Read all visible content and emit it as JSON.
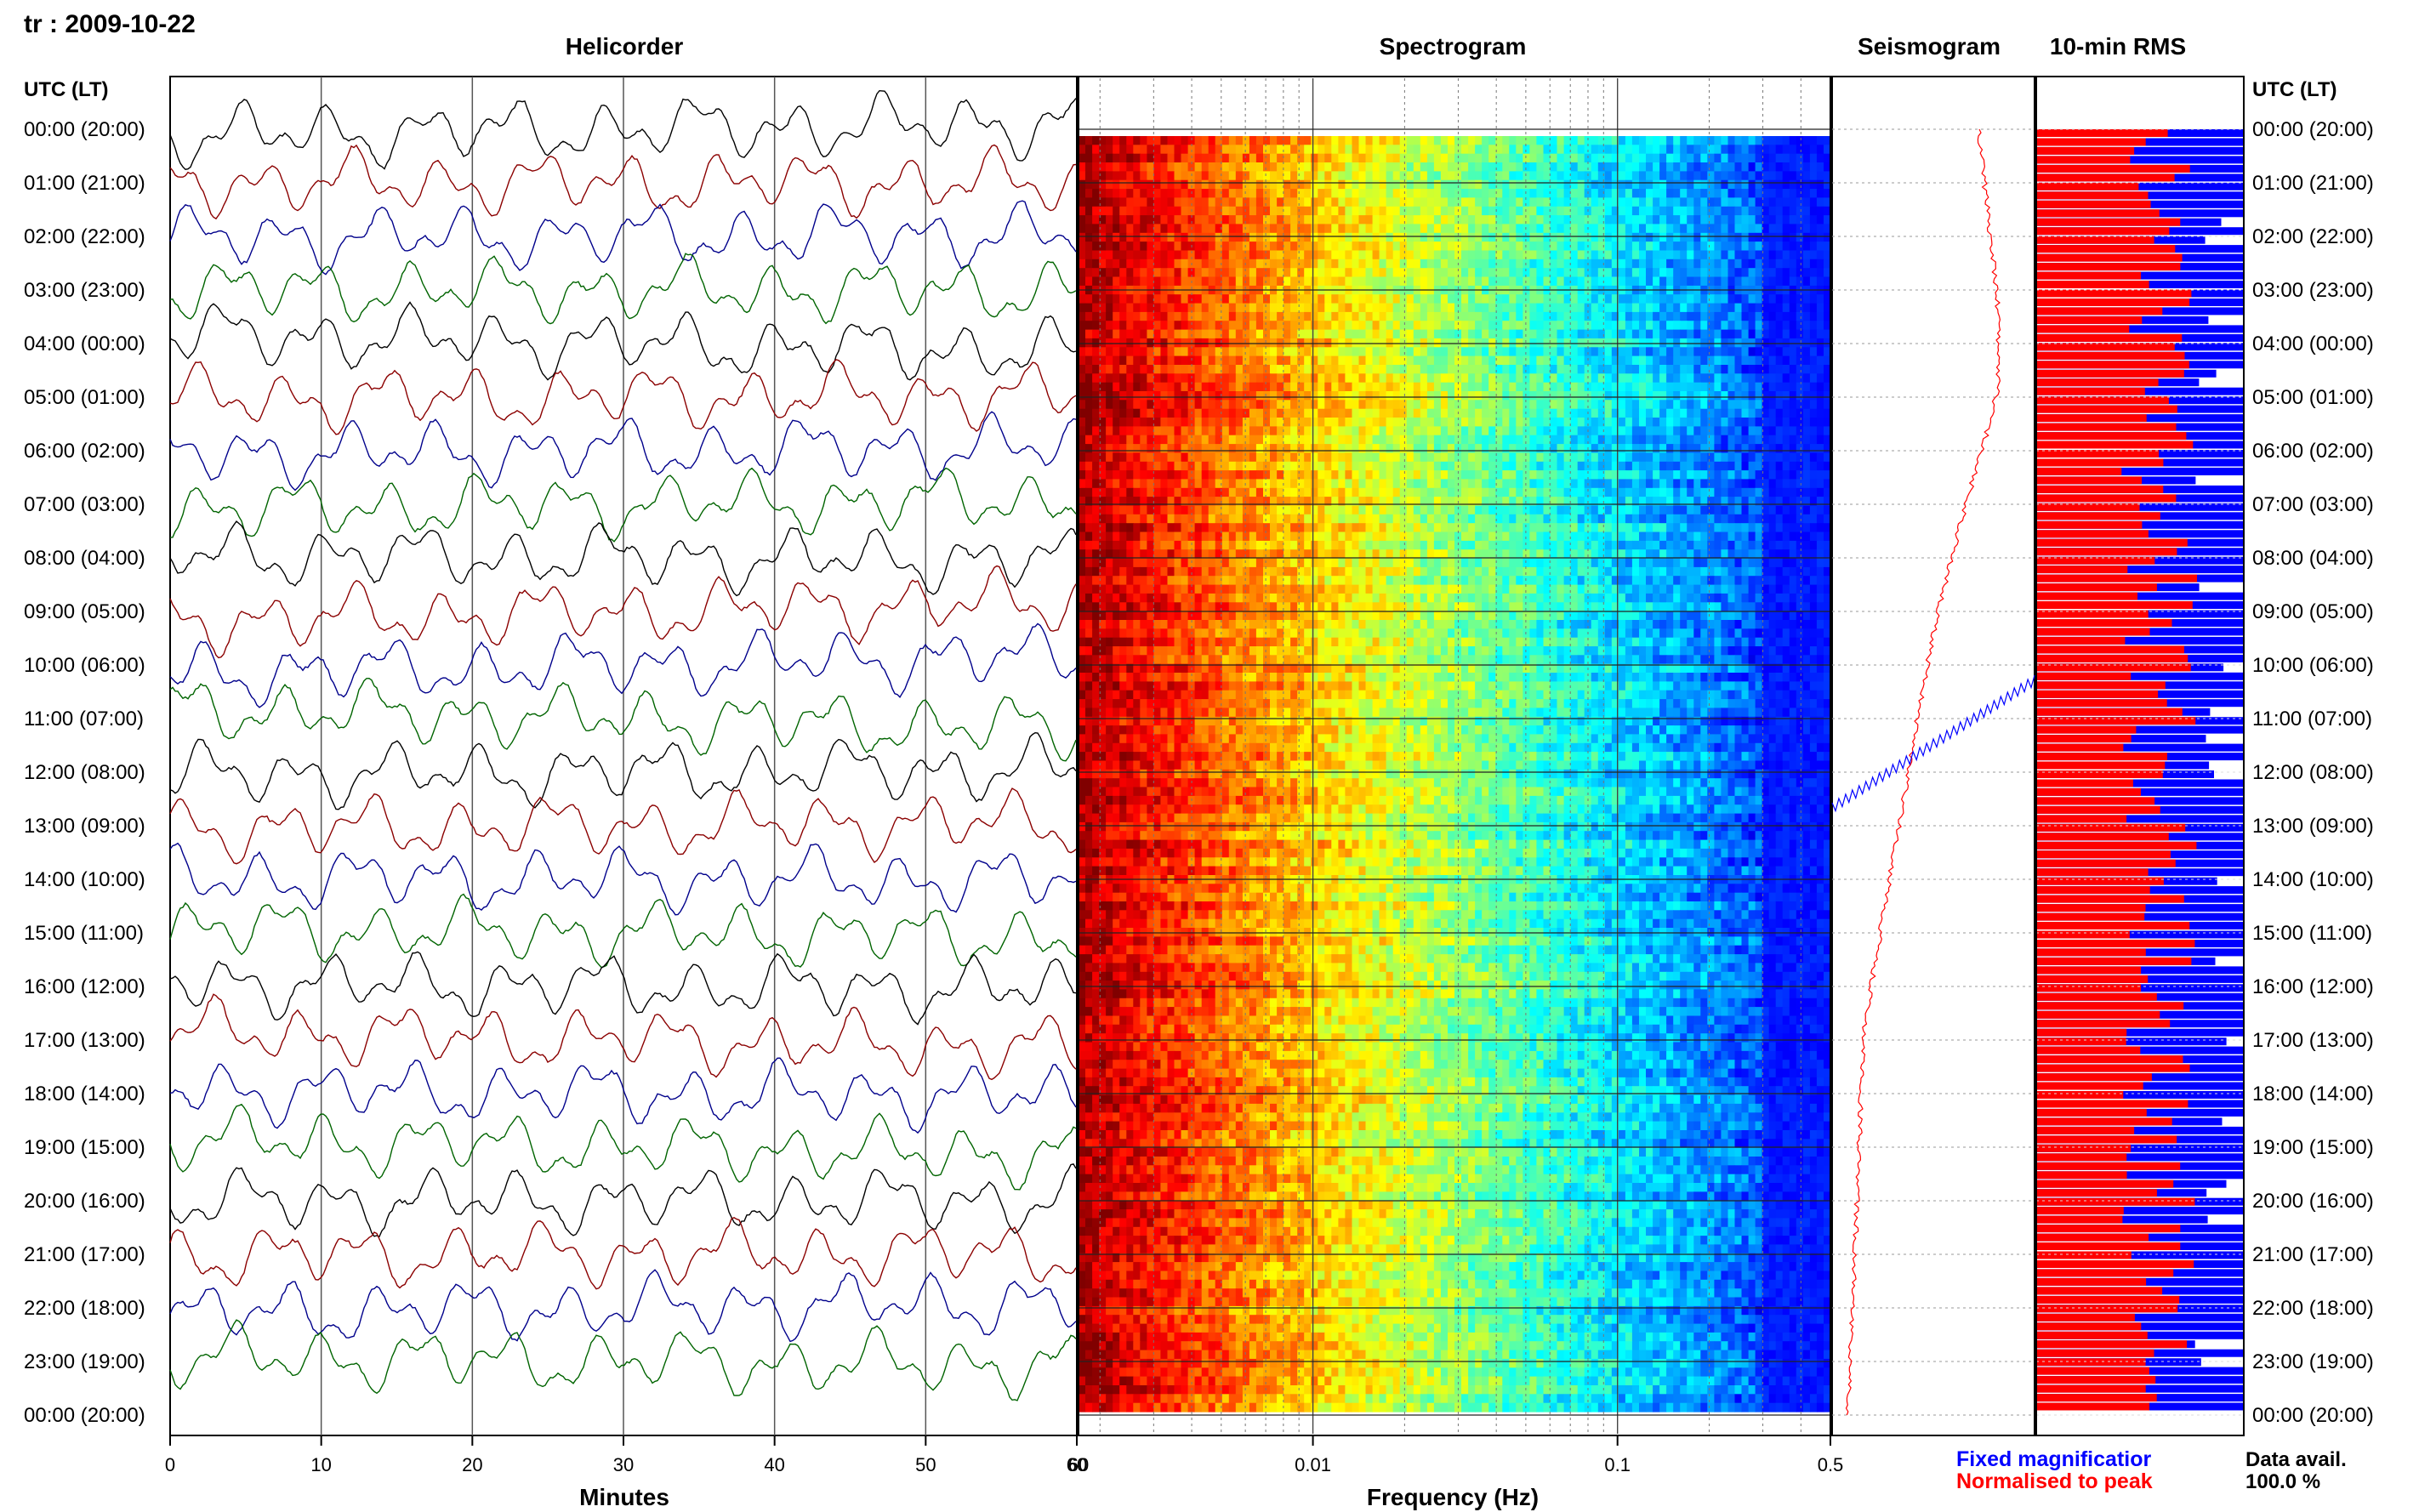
{
  "header": {
    "station_date": "tr : 2009-10-22"
  },
  "panels": {
    "helicorder": "Helicorder",
    "spectrogram": "Spectrogram",
    "seismogram": "Seismogram",
    "rms": "10-min RMS"
  },
  "time_axis_label": "UTC (LT)",
  "time_labels": [
    "00:00 (20:00)",
    "01:00 (21:00)",
    "02:00 (22:00)",
    "03:00 (23:00)",
    "04:00 (00:00)",
    "05:00 (01:00)",
    "06:00 (02:00)",
    "07:00 (03:00)",
    "08:00 (04:00)",
    "09:00 (05:00)",
    "10:00 (06:00)",
    "11:00 (07:00)",
    "12:00 (08:00)",
    "13:00 (09:00)",
    "14:00 (10:00)",
    "15:00 (11:00)",
    "16:00 (12:00)",
    "17:00 (13:00)",
    "18:00 (14:00)",
    "19:00 (15:00)",
    "20:00 (16:00)",
    "21:00 (17:00)",
    "22:00 (18:00)",
    "23:00 (19:00)",
    "00:00 (20:00)"
  ],
  "legend": {
    "fixed": "Fixed magnificatior",
    "normalised": "Normalised to peak",
    "avail_label": "Data avail.",
    "avail_value": "100.0 %"
  },
  "chart_data": [
    {
      "type": "line",
      "title": "Helicorder",
      "xlabel": "Minutes",
      "x_ticks": [
        0,
        10,
        20,
        30,
        40,
        50,
        60
      ],
      "xlim": [
        0,
        60
      ],
      "series_colors": [
        "#000000",
        "#8b0000",
        "#00008b",
        "#006400"
      ],
      "hours": 24
    },
    {
      "type": "heatmap",
      "title": "Spectrogram",
      "xlabel": "Frequency (Hz)",
      "x_scale": "log",
      "x_ticks": [
        "0.01",
        "0.1",
        "0.5"
      ],
      "xlim": [
        0.0017,
        0.5
      ],
      "colormap": "jet",
      "rows": 145
    },
    {
      "type": "line",
      "title": "Seismogram",
      "series": [
        {
          "name": "Fixed magnificatior",
          "color": "#0000ff"
        },
        {
          "name": "Normalised to peak",
          "color": "#ff0000"
        }
      ]
    },
    {
      "type": "bar",
      "title": "10-min RMS",
      "series": [
        {
          "name": "Fixed magnificatior",
          "color": "#0000ff"
        },
        {
          "name": "Normalised to peak",
          "color": "#ff0000"
        }
      ],
      "data_available_percent": 100.0,
      "rows": 144
    }
  ]
}
